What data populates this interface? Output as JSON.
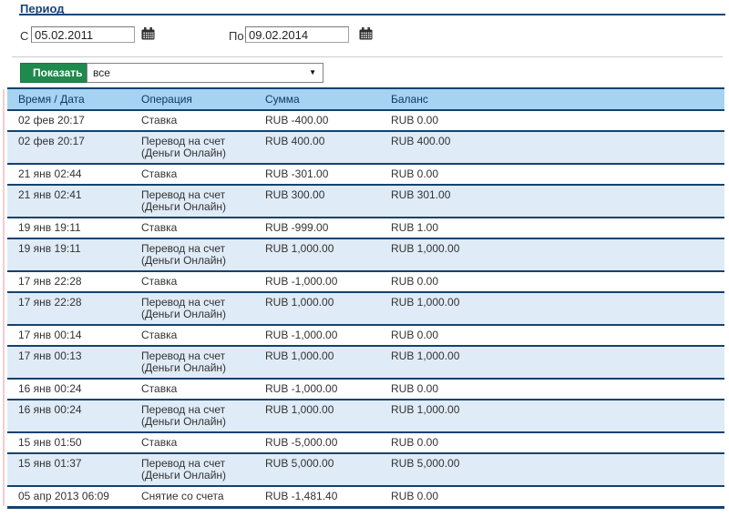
{
  "page": {
    "title": "Период"
  },
  "period": {
    "from_label": "С",
    "from_value": "05.02.2011",
    "to_label": "По",
    "to_value": "09.02.2014"
  },
  "controls": {
    "show_button": "Показать",
    "filter_selected": "все"
  },
  "icons": {
    "calendar": "calendar-grid",
    "dropdown_arrow": "▼"
  },
  "colors": {
    "navy_border": "#14426f",
    "title_navy": "#16457a",
    "header_bg": "#a7d3f3",
    "row_alt_bg": "#dfebf6",
    "button_green": "#1f8a4d"
  },
  "table": {
    "columns": [
      "Время / Дата",
      "Операция",
      "Сумма",
      "Баланс"
    ],
    "rows": [
      [
        "02 фев 20:17",
        "Ставка",
        "RUB -400.00",
        "RUB 0.00"
      ],
      [
        "02 фев 20:17",
        "Перевод на счет (Деньги Онлайн)",
        "RUB 400.00",
        "RUB 400.00"
      ],
      [
        "21 янв 02:44",
        "Ставка",
        "RUB -301.00",
        "RUB 0.00"
      ],
      [
        "21 янв 02:41",
        "Перевод на счет (Деньги Онлайн)",
        "RUB 300.00",
        "RUB 301.00"
      ],
      [
        "19 янв 19:11",
        "Ставка",
        "RUB -999.00",
        "RUB 1.00"
      ],
      [
        "19 янв 19:11",
        "Перевод на счет (Деньги Онлайн)",
        "RUB 1,000.00",
        "RUB 1,000.00"
      ],
      [
        "17 янв 22:28",
        "Ставка",
        "RUB -1,000.00",
        "RUB 0.00"
      ],
      [
        "17 янв 22:28",
        "Перевод на счет (Деньги Онлайн)",
        "RUB 1,000.00",
        "RUB 1,000.00"
      ],
      [
        "17 янв 00:14",
        "Ставка",
        "RUB -1,000.00",
        "RUB 0.00"
      ],
      [
        "17 янв 00:13",
        "Перевод на счет (Деньги Онлайн)",
        "RUB 1,000.00",
        "RUB 1,000.00"
      ],
      [
        "16 янв 00:24",
        "Ставка",
        "RUB -1,000.00",
        "RUB 0.00"
      ],
      [
        "16 янв 00:24",
        "Перевод на счет (Деньги Онлайн)",
        "RUB 1,000.00",
        "RUB 1,000.00"
      ],
      [
        "15 янв 01:50",
        "Ставка",
        "RUB -5,000.00",
        "RUB 0.00"
      ],
      [
        "15 янв 01:37",
        "Перевод на счет (Деньги Онлайн)",
        "RUB 5,000.00",
        "RUB 5,000.00"
      ],
      [
        "05 апр 2013 06:09",
        "Снятие со счета",
        "RUB -1,481.40",
        "RUB 0.00"
      ]
    ]
  }
}
